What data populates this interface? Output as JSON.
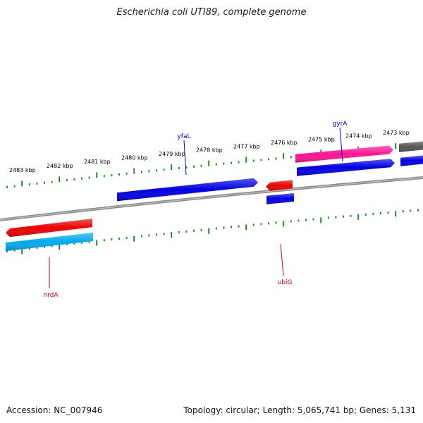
{
  "title": "Escherichia coli UTI89, complete genome",
  "footer": {
    "accession": "Accession: NC_007946",
    "summary": "Topology: circular; Length: 5,065,741 bp; Genes: 5,131"
  },
  "colors": {
    "backbone": "#8a8a8a",
    "ticks": "#228b22",
    "forward_label": "#0000cc",
    "reverse_label": "#cc0000"
  },
  "scale_labels": [
    "2483 kbp",
    "2482 kbp",
    "2481 kbp",
    "2480 kbp",
    "2479 kbp",
    "2478 kbp",
    "2477 kbp",
    "2476 kbp",
    "2475 kbp",
    "2474 kbp",
    "2473 kbp"
  ],
  "features": [
    {
      "strand": "forward",
      "color": "#0000e6"
    },
    {
      "strand": "forward",
      "color": "#ff1493"
    },
    {
      "strand": "forward",
      "color": "#0000e6"
    },
    {
      "strand": "forward",
      "color": "#0000e6"
    },
    {
      "strand": "forward",
      "color": "#555555"
    },
    {
      "strand": "reverse",
      "color": "#ee0000"
    },
    {
      "strand": "reverse",
      "color": "#00aaee"
    },
    {
      "strand": "reverse",
      "color": "#ee0000"
    },
    {
      "strand": "reverse",
      "color": "#0000e6"
    }
  ],
  "gene_labels": [
    {
      "text": "yfaL",
      "color": "#0000cc"
    },
    {
      "text": "gyrA",
      "color": "#0000cc"
    },
    {
      "text": "nrdA",
      "color": "#cc0000"
    },
    {
      "text": "ubiG",
      "color": "#cc0000"
    }
  ]
}
